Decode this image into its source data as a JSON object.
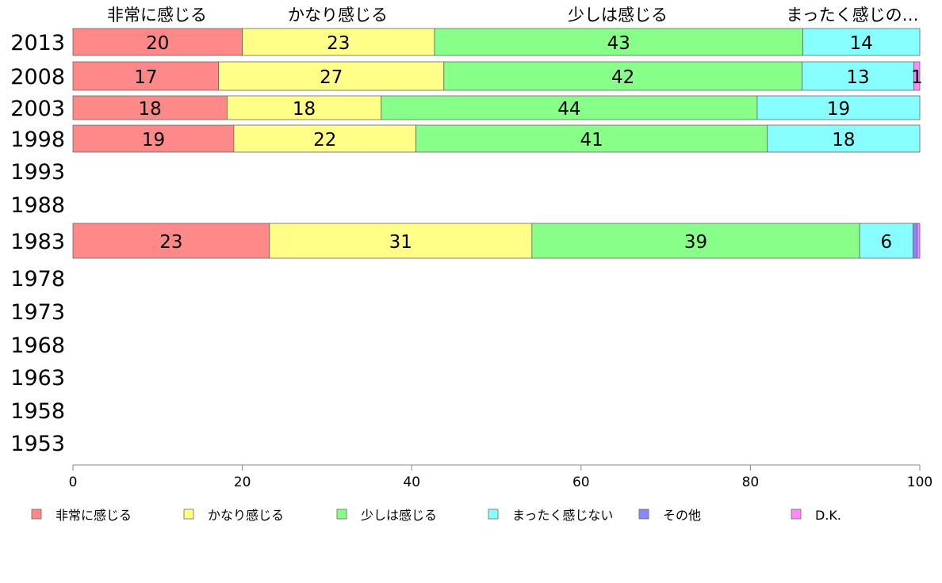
{
  "chart_data": {
    "type": "bar",
    "orientation": "horizontal",
    "stacked": true,
    "categories": [
      "2013",
      "2008",
      "2003",
      "1998",
      "1993",
      "1988",
      "1983",
      "1978",
      "1973",
      "1968",
      "1963",
      "1958",
      "1953"
    ],
    "series": [
      {
        "name": "非常に感じる",
        "color": "#ff8888",
        "values": [
          20,
          17.2,
          18.2,
          19,
          null,
          null,
          23.2,
          null,
          null,
          null,
          null,
          null,
          null
        ],
        "labels": [
          "20",
          "17",
          "18",
          "19",
          "",
          "",
          "23",
          "",
          "",
          "",
          "",
          "",
          ""
        ]
      },
      {
        "name": "かなり感じる",
        "color": "#ffff88",
        "values": [
          22.7,
          26.6,
          18.2,
          21.5,
          null,
          null,
          31,
          null,
          null,
          null,
          null,
          null,
          null
        ],
        "labels": [
          "23",
          "27",
          "18",
          "22",
          "",
          "",
          "31",
          "",
          "",
          "",
          "",
          "",
          ""
        ]
      },
      {
        "name": "少しは感じる",
        "color": "#88ff88",
        "values": [
          43.5,
          42.3,
          44.4,
          41.5,
          null,
          null,
          38.7,
          null,
          null,
          null,
          null,
          null,
          null
        ],
        "labels": [
          "43",
          "42",
          "44",
          "41",
          "",
          "",
          "39",
          "",
          "",
          "",
          "",
          "",
          ""
        ]
      },
      {
        "name": "まったく感じない",
        "color": "#88ffff",
        "values": [
          13.8,
          13.2,
          19.2,
          18,
          null,
          null,
          6.3,
          null,
          null,
          null,
          null,
          null,
          null
        ],
        "labels": [
          "14",
          "13",
          "19",
          "18",
          "",
          "",
          "6",
          "",
          "",
          "",
          "",
          "",
          ""
        ]
      },
      {
        "name": "その他",
        "color": "#8888ff",
        "values": [
          0,
          0,
          0,
          0,
          null,
          null,
          0.5,
          null,
          null,
          null,
          null,
          null,
          null
        ],
        "labels": [
          "",
          "",
          "",
          "",
          "",
          "",
          "",
          "",
          "",
          "",
          "",
          "",
          ""
        ]
      },
      {
        "name": "D.K.",
        "color": "#ff88ff",
        "values": [
          0,
          0.7,
          0,
          0,
          null,
          null,
          0.3,
          null,
          null,
          null,
          null,
          null,
          null
        ],
        "labels": [
          "",
          "1",
          "",
          "",
          "",
          "",
          "",
          "",
          "",
          "",
          "",
          "",
          ""
        ]
      }
    ],
    "top_labels": [
      "非常に感じる",
      "かなり感じる",
      "少しは感じる",
      "まったく感じの…"
    ],
    "xlim": [
      0,
      100
    ],
    "xticks": [
      0,
      20,
      40,
      60,
      80,
      100
    ],
    "legend_position": "bottom",
    "grid": false
  }
}
